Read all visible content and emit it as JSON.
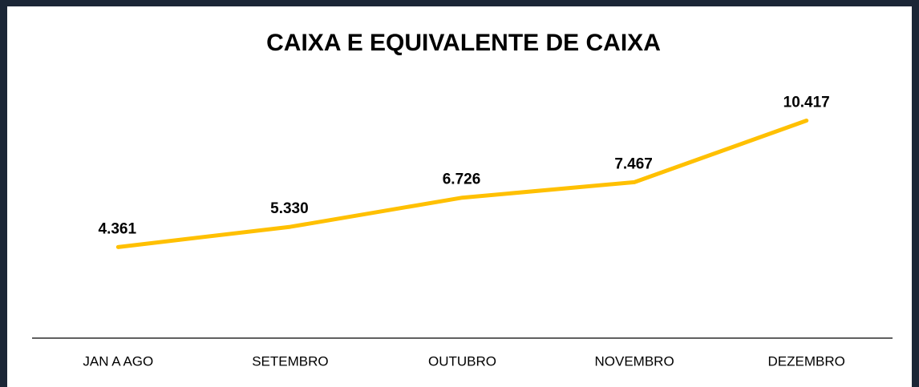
{
  "chart_data": {
    "type": "line",
    "title": "CAIXA E EQUIVALENTE DE CAIXA",
    "categories": [
      "JAN A AGO",
      "SETEMBRO",
      "OUTUBRO",
      "NOVEMBRO",
      "DEZEMBRO"
    ],
    "series": [
      {
        "color": "#FFC000",
        "values": [
          4361,
          5330,
          6726,
          7467,
          10417
        ],
        "value_labels": [
          "4.361",
          "5.330",
          "6.726",
          "7.467",
          "10.417"
        ]
      }
    ],
    "ylim": [
      0,
      16000
    ]
  }
}
